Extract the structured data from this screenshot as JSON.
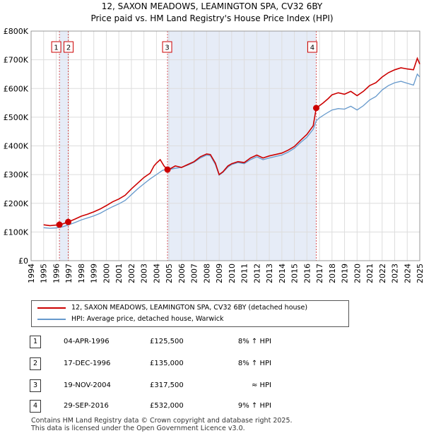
{
  "title_line1": "12, SAXON MEADOWS, LEAMINGTON SPA, CV32 6BY",
  "title_line2": "Price paid vs. HM Land Registry's House Price Index (HPI)",
  "chart_data": {
    "type": "line",
    "x_min": 1994,
    "x_max": 2025,
    "ylim": [
      0,
      800000
    ],
    "y_ticks": [
      {
        "value": 0,
        "label": "£0"
      },
      {
        "value": 100000,
        "label": "£100K"
      },
      {
        "value": 200000,
        "label": "£200K"
      },
      {
        "value": 300000,
        "label": "£300K"
      },
      {
        "value": 400000,
        "label": "£400K"
      },
      {
        "value": 500000,
        "label": "£500K"
      },
      {
        "value": 600000,
        "label": "£600K"
      },
      {
        "value": 700000,
        "label": "£700K"
      },
      {
        "value": 800000,
        "label": "£800K"
      }
    ],
    "x_ticks": [
      "1994",
      "1995",
      "1996",
      "1997",
      "1998",
      "1999",
      "2000",
      "2001",
      "2002",
      "2003",
      "2004",
      "2005",
      "2006",
      "2007",
      "2008",
      "2009",
      "2010",
      "2011",
      "2012",
      "2013",
      "2014",
      "2015",
      "2016",
      "2017",
      "2018",
      "2019",
      "2020",
      "2021",
      "2022",
      "2023",
      "2024",
      "2025"
    ],
    "grid": true,
    "series": [
      {
        "name": "12, SAXON MEADOWS, LEAMINGTON SPA, CV32 6BY (detached house)",
        "color": "#cc0000",
        "points": [
          [
            1995.0,
            125000
          ],
          [
            1995.5,
            122000
          ],
          [
            1996.0,
            124000
          ],
          [
            1996.26,
            125500
          ],
          [
            1996.5,
            128000
          ],
          [
            1996.96,
            135000
          ],
          [
            1997.5,
            145000
          ],
          [
            1998.0,
            155000
          ],
          [
            1998.5,
            162000
          ],
          [
            1999.0,
            170000
          ],
          [
            1999.5,
            180000
          ],
          [
            2000.0,
            192000
          ],
          [
            2000.5,
            205000
          ],
          [
            2001.0,
            215000
          ],
          [
            2001.5,
            228000
          ],
          [
            2002.0,
            250000
          ],
          [
            2002.5,
            270000
          ],
          [
            2003.0,
            290000
          ],
          [
            2003.5,
            305000
          ],
          [
            2003.8,
            330000
          ],
          [
            2004.0,
            340000
          ],
          [
            2004.3,
            352000
          ],
          [
            2004.6,
            330000
          ],
          [
            2004.88,
            317500
          ],
          [
            2005.0,
            318000
          ],
          [
            2005.5,
            330000
          ],
          [
            2006.0,
            325000
          ],
          [
            2006.5,
            335000
          ],
          [
            2007.0,
            345000
          ],
          [
            2007.5,
            362000
          ],
          [
            2008.0,
            372000
          ],
          [
            2008.3,
            370000
          ],
          [
            2008.7,
            340000
          ],
          [
            2009.0,
            300000
          ],
          [
            2009.3,
            310000
          ],
          [
            2009.7,
            330000
          ],
          [
            2010.0,
            338000
          ],
          [
            2010.5,
            345000
          ],
          [
            2011.0,
            342000
          ],
          [
            2011.5,
            358000
          ],
          [
            2012.0,
            368000
          ],
          [
            2012.5,
            358000
          ],
          [
            2013.0,
            365000
          ],
          [
            2013.5,
            370000
          ],
          [
            2014.0,
            375000
          ],
          [
            2014.5,
            385000
          ],
          [
            2015.0,
            398000
          ],
          [
            2015.5,
            420000
          ],
          [
            2016.0,
            440000
          ],
          [
            2016.5,
            470000
          ],
          [
            2016.74,
            532000
          ],
          [
            2017.0,
            540000
          ],
          [
            2017.3,
            550000
          ],
          [
            2017.7,
            565000
          ],
          [
            2018.0,
            578000
          ],
          [
            2018.5,
            585000
          ],
          [
            2019.0,
            580000
          ],
          [
            2019.5,
            590000
          ],
          [
            2020.0,
            575000
          ],
          [
            2020.5,
            590000
          ],
          [
            2021.0,
            610000
          ],
          [
            2021.5,
            620000
          ],
          [
            2022.0,
            640000
          ],
          [
            2022.5,
            655000
          ],
          [
            2023.0,
            665000
          ],
          [
            2023.5,
            672000
          ],
          [
            2024.0,
            668000
          ],
          [
            2024.5,
            665000
          ],
          [
            2024.8,
            705000
          ],
          [
            2025.0,
            685000
          ]
        ]
      },
      {
        "name": "HPI: Average price, detached house, Warwick",
        "color": "#6699cc",
        "points": [
          [
            1995.0,
            115000
          ],
          [
            1995.5,
            113000
          ],
          [
            1996.0,
            114000
          ],
          [
            1996.5,
            118000
          ],
          [
            1997.0,
            125000
          ],
          [
            1997.5,
            133000
          ],
          [
            1998.0,
            142000
          ],
          [
            1998.5,
            149000
          ],
          [
            1999.0,
            156000
          ],
          [
            1999.5,
            165000
          ],
          [
            2000.0,
            177000
          ],
          [
            2000.5,
            188000
          ],
          [
            2001.0,
            198000
          ],
          [
            2001.5,
            210000
          ],
          [
            2002.0,
            230000
          ],
          [
            2002.5,
            250000
          ],
          [
            2003.0,
            268000
          ],
          [
            2003.5,
            285000
          ],
          [
            2004.0,
            300000
          ],
          [
            2004.5,
            315000
          ],
          [
            2004.88,
            317500
          ],
          [
            2005.0,
            318000
          ],
          [
            2005.5,
            322000
          ],
          [
            2006.0,
            325000
          ],
          [
            2006.5,
            333000
          ],
          [
            2007.0,
            343000
          ],
          [
            2007.5,
            358000
          ],
          [
            2008.0,
            368000
          ],
          [
            2008.3,
            366000
          ],
          [
            2008.7,
            335000
          ],
          [
            2009.0,
            298000
          ],
          [
            2009.3,
            308000
          ],
          [
            2009.7,
            326000
          ],
          [
            2010.0,
            335000
          ],
          [
            2010.5,
            342000
          ],
          [
            2011.0,
            338000
          ],
          [
            2011.5,
            352000
          ],
          [
            2012.0,
            362000
          ],
          [
            2012.5,
            352000
          ],
          [
            2013.0,
            358000
          ],
          [
            2013.5,
            363000
          ],
          [
            2014.0,
            368000
          ],
          [
            2014.5,
            378000
          ],
          [
            2015.0,
            392000
          ],
          [
            2015.5,
            412000
          ],
          [
            2016.0,
            430000
          ],
          [
            2016.5,
            458000
          ],
          [
            2016.74,
            487000
          ],
          [
            2017.0,
            498000
          ],
          [
            2017.5,
            512000
          ],
          [
            2018.0,
            525000
          ],
          [
            2018.5,
            530000
          ],
          [
            2019.0,
            528000
          ],
          [
            2019.5,
            538000
          ],
          [
            2020.0,
            525000
          ],
          [
            2020.5,
            540000
          ],
          [
            2021.0,
            560000
          ],
          [
            2021.5,
            572000
          ],
          [
            2022.0,
            595000
          ],
          [
            2022.5,
            610000
          ],
          [
            2023.0,
            620000
          ],
          [
            2023.5,
            625000
          ],
          [
            2024.0,
            618000
          ],
          [
            2024.5,
            612000
          ],
          [
            2024.8,
            650000
          ],
          [
            2025.0,
            640000
          ]
        ]
      }
    ],
    "transactions": [
      {
        "num": "1",
        "x": 1996.26,
        "price": 125500
      },
      {
        "num": "2",
        "x": 1996.96,
        "price": 135000
      },
      {
        "num": "3",
        "x": 2004.88,
        "price": 317500
      },
      {
        "num": "4",
        "x": 2016.74,
        "price": 532000
      }
    ],
    "shaded_periods": [
      [
        1996.26,
        1996.96
      ],
      [
        2004.88,
        2016.74
      ]
    ]
  },
  "legend": {
    "property_label": "12, SAXON MEADOWS, LEAMINGTON SPA, CV32 6BY (detached house)",
    "hpi_label": "HPI: Average price, detached house, Warwick",
    "property_color": "#cc0000",
    "hpi_color": "#6699cc"
  },
  "table": [
    {
      "num": "1",
      "date": "04-APR-1996",
      "price": "£125,500",
      "hpi": "8% ↑ HPI"
    },
    {
      "num": "2",
      "date": "17-DEC-1996",
      "price": "£135,000",
      "hpi": "8% ↑ HPI"
    },
    {
      "num": "3",
      "date": "19-NOV-2004",
      "price": "£317,500",
      "hpi": "≈ HPI"
    },
    {
      "num": "4",
      "date": "29-SEP-2016",
      "price": "£532,000",
      "hpi": "9% ↑ HPI"
    }
  ],
  "footer_line1": "Contains HM Land Registry data © Crown copyright and database right 2025.",
  "footer_line2": "This data is licensed under the Open Government Licence v3.0."
}
